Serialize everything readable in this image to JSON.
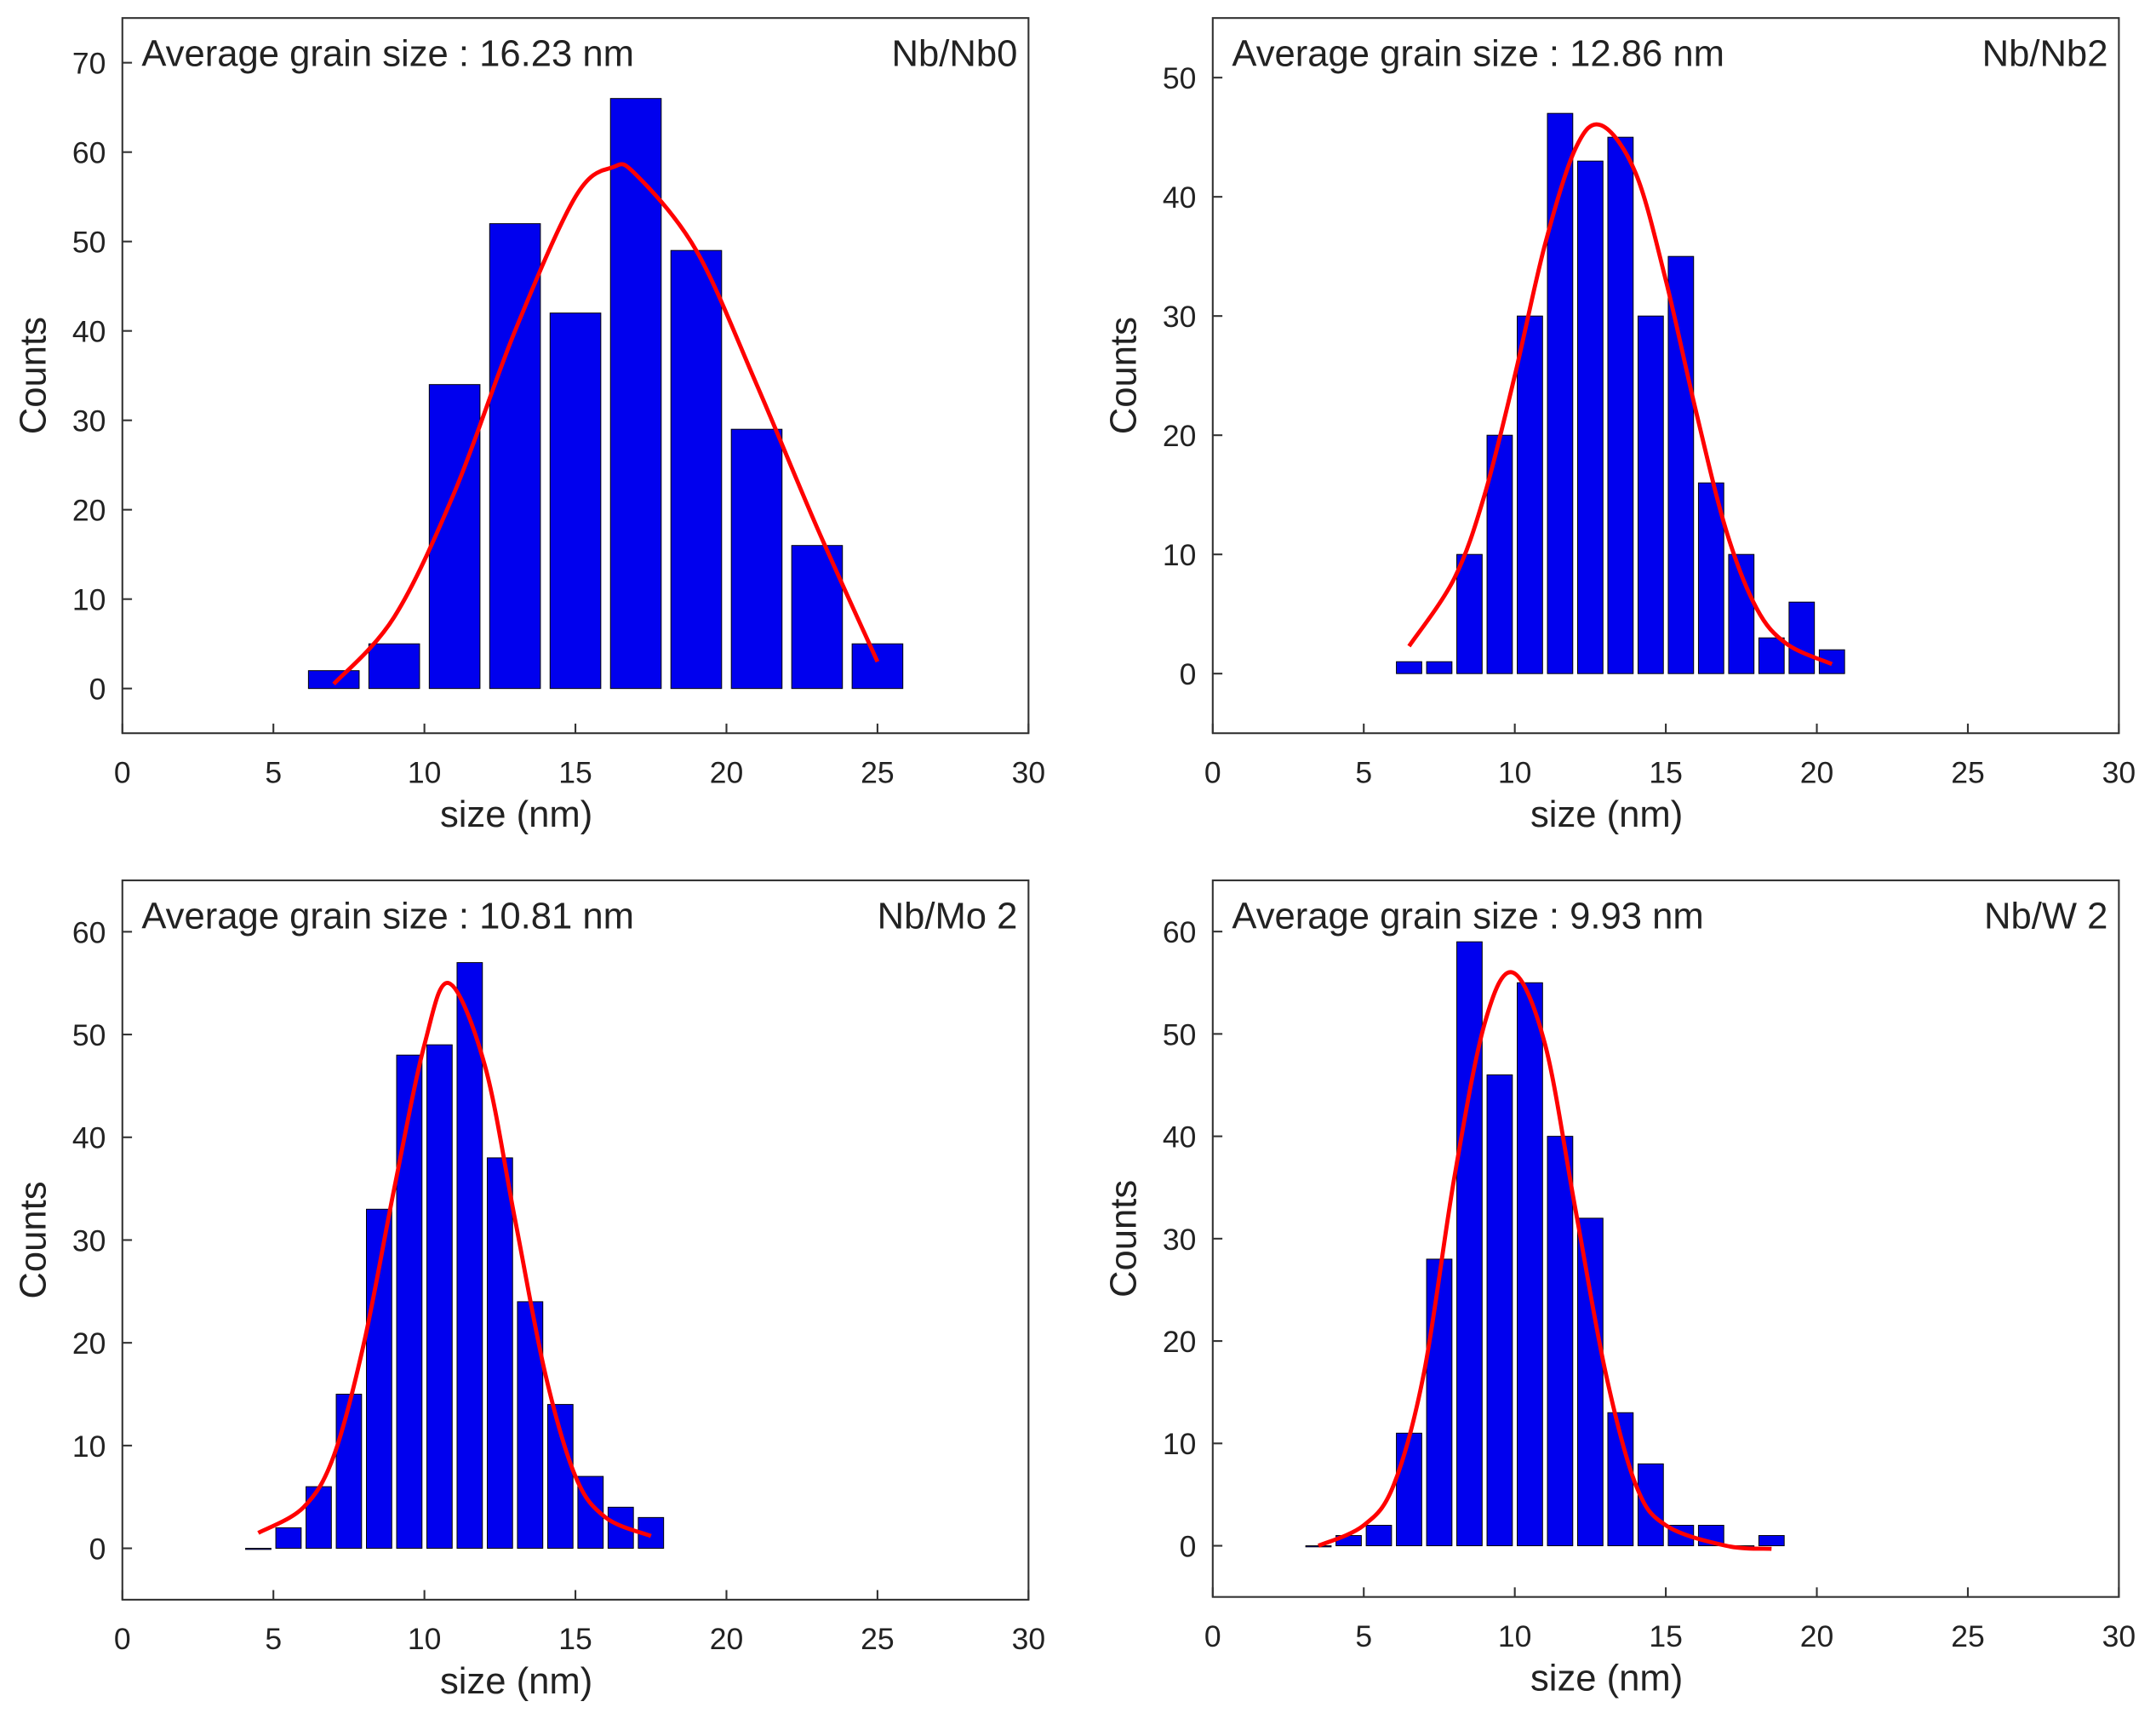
{
  "chart_data": [
    {
      "type": "histogram",
      "annotation": "Average grain size : 16.23 nm",
      "sample_label": "Nb/Nb0",
      "xlabel": "size (nm)",
      "ylabel": "Counts",
      "color": "#0000ee",
      "bins": [
        6,
        8,
        10,
        12,
        14,
        16,
        18,
        20,
        22,
        24,
        26
      ],
      "counts": [
        2,
        5,
        34,
        52,
        42,
        66,
        49,
        29,
        16,
        5
      ],
      "fit": {
        "color": "#ff0000",
        "x": [
          7,
          9,
          11,
          13,
          15,
          16.23,
          17,
          19,
          21,
          23,
          25
        ],
        "values": [
          0.5,
          8,
          22,
          40,
          55,
          58.3,
          57.5,
          49,
          34,
          18,
          3
        ]
      },
      "xlim": [
        0,
        30
      ],
      "ylim": [
        -5,
        75
      ],
      "xticks": [
        0,
        5,
        10,
        15,
        20,
        25,
        30
      ],
      "yticks": [
        0,
        10,
        20,
        30,
        40,
        50,
        60,
        70
      ]
    },
    {
      "type": "histogram",
      "annotation": "Average grain size : 12.86 nm",
      "sample_label": "Nb/Nb2",
      "xlabel": "size (nm)",
      "ylabel": "Counts",
      "color": "#0000ee",
      "bins": [
        6,
        7,
        8,
        9,
        10,
        11,
        12,
        13,
        14,
        15,
        16,
        17,
        18,
        19,
        20,
        21
      ],
      "counts": [
        1,
        1,
        10,
        20,
        30,
        47,
        43,
        45,
        30,
        35,
        16,
        10,
        3,
        6,
        2
      ],
      "fit": {
        "color": "#ff0000",
        "x": [
          6.5,
          8,
          9,
          10,
          11,
          12,
          12.86,
          14,
          15,
          16,
          17,
          18,
          19,
          20.5
        ],
        "values": [
          2.3,
          8,
          15,
          25,
          36,
          44,
          46,
          42,
          33,
          22,
          12,
          5.5,
          2.5,
          0.8
        ]
      },
      "xlim": [
        0,
        30
      ],
      "ylim": [
        -5,
        55
      ],
      "xticks": [
        0,
        5,
        10,
        15,
        20,
        25,
        30
      ],
      "yticks": [
        0,
        10,
        20,
        30,
        40,
        50
      ]
    },
    {
      "type": "histogram",
      "annotation": "Average grain size : 10.81 nm",
      "sample_label": "Nb/Mo 2",
      "xlabel": "size (nm)",
      "ylabel": "Counts",
      "color": "#0000ee",
      "bins": [
        4,
        5,
        6,
        7,
        8,
        9,
        10,
        11,
        12,
        13,
        14,
        15,
        16,
        17,
        18
      ],
      "counts": [
        0,
        2,
        6,
        15,
        33,
        48,
        49,
        57,
        38,
        24,
        14,
        7,
        4,
        3
      ],
      "fit": {
        "color": "#ff0000",
        "x": [
          4.5,
          6,
          7,
          8,
          9,
          10,
          10.81,
          12,
          13,
          14,
          15,
          16,
          17.5
        ],
        "values": [
          1.5,
          4,
          9,
          20,
          35,
          49,
          55,
          47,
          32,
          17,
          7,
          3,
          1.2
        ]
      },
      "xlim": [
        0,
        30
      ],
      "ylim": [
        -5,
        65
      ],
      "xticks": [
        0,
        5,
        10,
        15,
        20,
        25,
        30
      ],
      "yticks": [
        0,
        10,
        20,
        30,
        40,
        50,
        60
      ]
    },
    {
      "type": "histogram",
      "annotation": "Average grain size : 9.93 nm",
      "sample_label": "Nb/W 2",
      "xlabel": "size (nm)",
      "ylabel": "Counts",
      "color": "#0000ee",
      "bins": [
        3,
        4,
        5,
        6,
        7,
        8,
        9,
        10,
        11,
        12,
        13,
        14,
        15,
        16,
        17,
        18,
        19
      ],
      "counts": [
        0,
        1,
        2,
        11,
        28,
        59,
        46,
        55,
        40,
        32,
        13,
        8,
        2,
        2,
        0,
        1
      ],
      "fit": {
        "color": "#ff0000",
        "x": [
          3.5,
          5,
          6,
          7,
          8,
          9,
          9.93,
          11,
          12,
          13,
          14,
          15,
          17,
          18.5
        ],
        "values": [
          0,
          2,
          6,
          17,
          36,
          51,
          56,
          49,
          33,
          17,
          6,
          2,
          0,
          -0.3
        ]
      },
      "xlim": [
        0,
        30
      ],
      "ylim": [
        -5,
        65
      ],
      "xticks": [
        0,
        5,
        10,
        15,
        20,
        25,
        30
      ],
      "yticks": [
        0,
        10,
        20,
        30,
        40,
        50,
        60
      ]
    }
  ]
}
